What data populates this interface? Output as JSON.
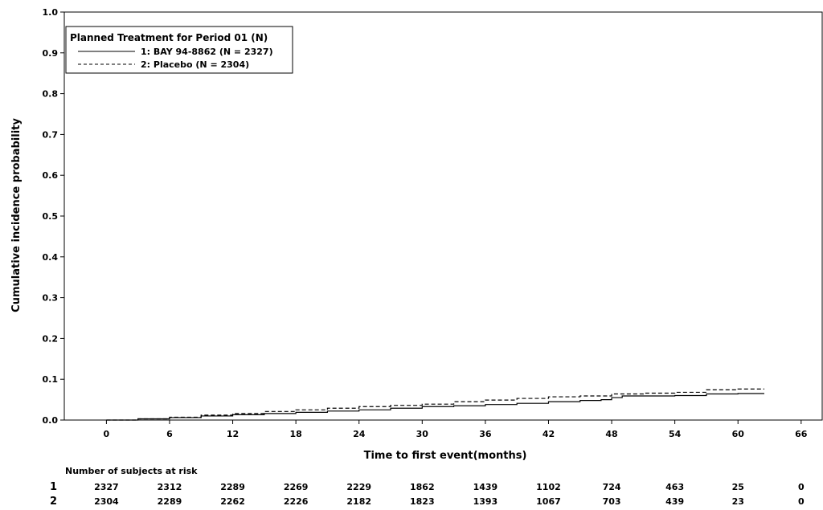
{
  "chart_data": {
    "type": "line",
    "xlabel": "Time to first event(months)",
    "ylabel": "Cumulative incidence probability",
    "xlim": [
      -4,
      68
    ],
    "ylim": [
      0,
      1.0
    ],
    "xticks": [
      "0",
      "6",
      "12",
      "18",
      "24",
      "30",
      "36",
      "42",
      "48",
      "54",
      "60",
      "66"
    ],
    "yticks": [
      "0.0",
      "0.1",
      "0.2",
      "0.3",
      "0.4",
      "0.5",
      "0.6",
      "0.7",
      "0.8",
      "0.9",
      "1.0"
    ],
    "legend": {
      "title": "Planned Treatment for Period 01 (N)",
      "position": "top-left",
      "entries": [
        {
          "label": "1: BAY 94-8862 (N = 2327)",
          "style": "solid"
        },
        {
          "label": "2: Placebo (N = 2304)",
          "style": "dashed"
        }
      ]
    },
    "series": [
      {
        "id": "1",
        "style": "solid",
        "points": [
          [
            0,
            0.0
          ],
          [
            3,
            0.003
          ],
          [
            6,
            0.006
          ],
          [
            9,
            0.01
          ],
          [
            12,
            0.013
          ],
          [
            15,
            0.016
          ],
          [
            18,
            0.019
          ],
          [
            21,
            0.022
          ],
          [
            24,
            0.025
          ],
          [
            27,
            0.029
          ],
          [
            30,
            0.033
          ],
          [
            33,
            0.035
          ],
          [
            36,
            0.038
          ],
          [
            39,
            0.041
          ],
          [
            42,
            0.045
          ],
          [
            45,
            0.048
          ],
          [
            47,
            0.05
          ],
          [
            48,
            0.055
          ],
          [
            49,
            0.059
          ],
          [
            54,
            0.06
          ],
          [
            57,
            0.064
          ],
          [
            60,
            0.065
          ],
          [
            62.5,
            0.065
          ]
        ]
      },
      {
        "id": "2",
        "style": "dashed",
        "points": [
          [
            0,
            0.0
          ],
          [
            3,
            0.003
          ],
          [
            6,
            0.007
          ],
          [
            9,
            0.012
          ],
          [
            12,
            0.016
          ],
          [
            15,
            0.021
          ],
          [
            18,
            0.025
          ],
          [
            21,
            0.029
          ],
          [
            24,
            0.033
          ],
          [
            27,
            0.036
          ],
          [
            30,
            0.039
          ],
          [
            33,
            0.045
          ],
          [
            36,
            0.049
          ],
          [
            39,
            0.053
          ],
          [
            42,
            0.057
          ],
          [
            45,
            0.059
          ],
          [
            48,
            0.064
          ],
          [
            51,
            0.066
          ],
          [
            54,
            0.068
          ],
          [
            57,
            0.074
          ],
          [
            60,
            0.076
          ],
          [
            62.5,
            0.076
          ]
        ]
      }
    ],
    "risk_table": {
      "title": "Number of subjects at risk",
      "times": [
        0,
        6,
        12,
        18,
        24,
        30,
        36,
        42,
        48,
        54,
        60,
        66
      ],
      "rows": [
        {
          "group": "1",
          "values": [
            "2327",
            "2312",
            "2289",
            "2269",
            "2229",
            "1862",
            "1439",
            "1102",
            "724",
            "463",
            "25",
            "0"
          ]
        },
        {
          "group": "2",
          "values": [
            "2304",
            "2289",
            "2262",
            "2226",
            "2182",
            "1823",
            "1393",
            "1067",
            "703",
            "439",
            "23",
            "0"
          ]
        }
      ]
    }
  }
}
